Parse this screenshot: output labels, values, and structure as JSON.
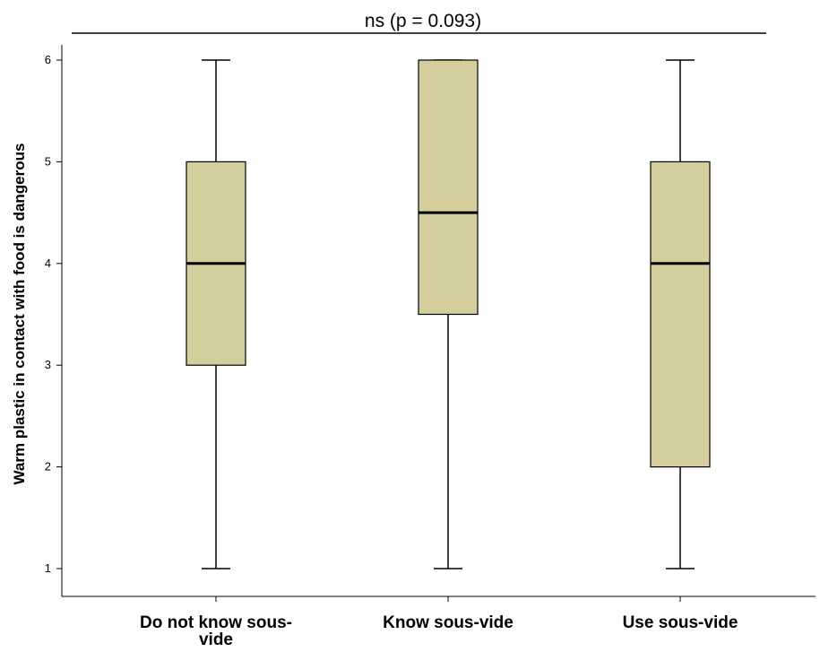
{
  "chart_data": {
    "type": "box",
    "title": "",
    "annotation": "ns (p = 0.093)",
    "xlabel": "",
    "ylabel": "Warm plastic in contact with food is dangerous",
    "ylim": [
      1,
      6
    ],
    "yticks": [
      "1",
      "2",
      "3",
      "4",
      "5",
      "6"
    ],
    "grid": false,
    "categories": [
      "Do not know sous-vide",
      "Know sous-vide",
      "Use sous-vide"
    ],
    "category_label_lines": [
      [
        "Do not know sous-",
        "vide"
      ],
      [
        "Know sous-vide"
      ],
      [
        "Use sous-vide"
      ]
    ],
    "boxes": [
      {
        "min": 1,
        "q1": 3,
        "median": 4,
        "q3": 5,
        "max": 6
      },
      {
        "min": 1,
        "q1": 3.5,
        "median": 4.5,
        "q3": 6,
        "max": 6
      },
      {
        "min": 1,
        "q1": 2,
        "median": 4,
        "q3": 5,
        "max": 6
      }
    ],
    "colors": {
      "box_fill": "#d3ce9c",
      "stroke": "#000000"
    }
  }
}
